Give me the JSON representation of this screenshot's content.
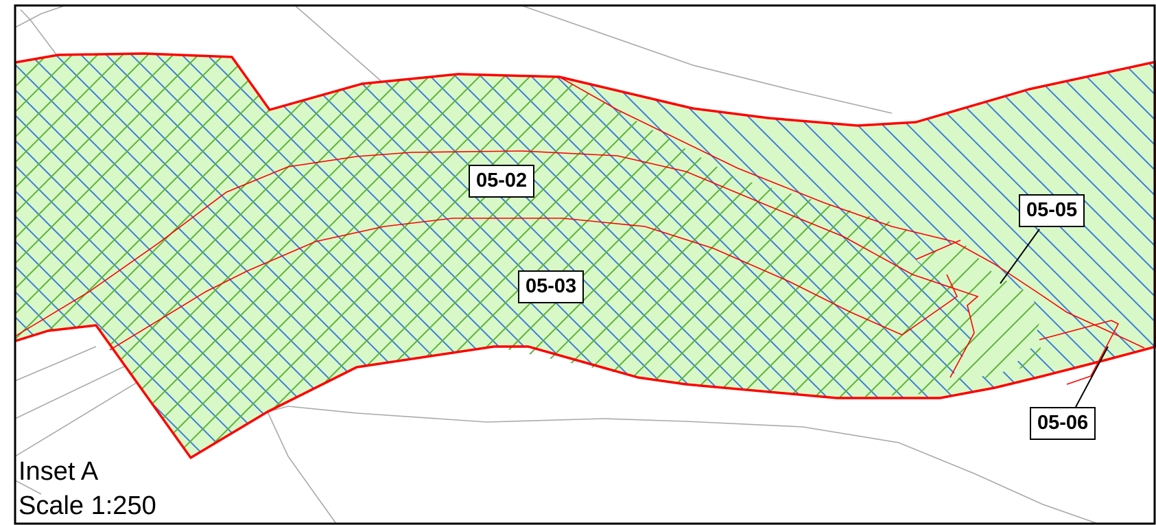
{
  "map": {
    "inset_title": "Inset A",
    "scale_text": "Scale 1:250",
    "parcels": [
      {
        "id": "05-02"
      },
      {
        "id": "05-03"
      },
      {
        "id": "05-05"
      },
      {
        "id": "05-06"
      }
    ],
    "colors": {
      "boundary": "#ff0000",
      "fill": "#d8f8c8",
      "hatch_blue": "#3b7fd8",
      "hatch_green": "#5eb33a",
      "background_lines": "#a9a9a9",
      "frame": "#000000"
    }
  }
}
